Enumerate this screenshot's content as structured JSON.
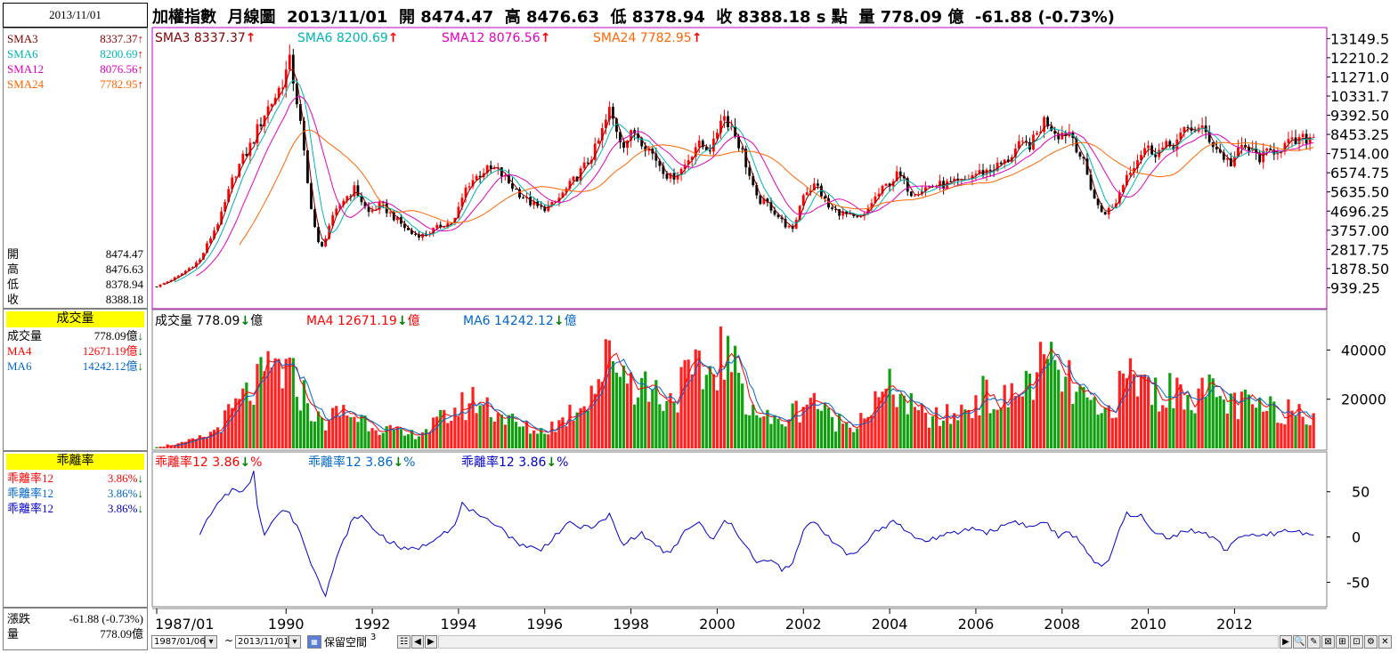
{
  "header": {
    "date": "2013/11/01",
    "title": "加權指數  月線圖  2013/11/01  開 8474.47  高 8476.63  低 8378.94  收 8388.18 s 點  量 778.09 億  -61.88 (-0.73%)"
  },
  "left_panel": {
    "sma": [
      {
        "name": "SMA3",
        "value": "8337.37",
        "arrow": "↑",
        "color": "#800000"
      },
      {
        "name": "SMA6",
        "value": "8200.69",
        "arrow": "↑",
        "color": "#00b4b4"
      },
      {
        "name": "SMA12",
        "value": "8076.56",
        "arrow": "↑",
        "color": "#e000c0"
      },
      {
        "name": "SMA24",
        "value": "7782.95",
        "arrow": "↑",
        "color": "#ff6600"
      }
    ],
    "ohlc": [
      {
        "name": "開",
        "value": "8474.47"
      },
      {
        "name": "高",
        "value": "8476.63"
      },
      {
        "name": "低",
        "value": "8378.94"
      },
      {
        "name": "收",
        "value": "8388.18"
      }
    ],
    "volume_title": "成交量",
    "volume": [
      {
        "name": "成交量",
        "value": "778.09億",
        "arrow": "↓",
        "color": "#000000"
      },
      {
        "name": "MA4",
        "value": "12671.19億",
        "arrow": "↓",
        "color": "#ff0000"
      },
      {
        "name": "MA6",
        "value": "14242.12億",
        "arrow": "↓",
        "color": "#0066cc"
      }
    ],
    "bias_title": "乖離率",
    "bias": [
      {
        "name": "乖離率12",
        "value": "3.86%",
        "arrow": "↓",
        "color": "#ff0000"
      },
      {
        "name": "乖離率12",
        "value": "3.86%",
        "arrow": "↓",
        "color": "#0066cc"
      },
      {
        "name": "乖離率12",
        "value": "3.86%",
        "arrow": "↓",
        "color": "#0000cc"
      }
    ],
    "footer": [
      {
        "name": "漲跌",
        "value": "-61.88 (-0.73%)"
      },
      {
        "name": "量",
        "value": "778.09億"
      }
    ]
  },
  "legends": {
    "price": [
      {
        "label": "SMA3",
        "value": "8337.37",
        "arrow": "↑",
        "color": "#800000"
      },
      {
        "label": "SMA6",
        "value": "8200.69",
        "arrow": "↑",
        "color": "#00b4b4"
      },
      {
        "label": "SMA12",
        "value": "8076.56",
        "arrow": "↑",
        "color": "#e000c0"
      },
      {
        "label": "SMA24",
        "value": "7782.95",
        "arrow": "↑",
        "color": "#ff6600"
      }
    ],
    "volume": [
      {
        "label": "成交量",
        "value": "778.09",
        "arrow": "↓",
        "unit": "億",
        "color": "#000000"
      },
      {
        "label": "MA4",
        "value": "12671.19",
        "arrow": "↓",
        "unit": "億",
        "color": "#ff0000"
      },
      {
        "label": "MA6",
        "value": "14242.12",
        "arrow": "↓",
        "unit": "億",
        "color": "#0066cc"
      }
    ],
    "bias": [
      {
        "label": "乖離率12",
        "value": "3.86",
        "arrow": "↓",
        "unit": "%",
        "color": "#ff0000"
      },
      {
        "label": "乖離率12",
        "value": "3.86",
        "arrow": "↓",
        "unit": "%",
        "color": "#0066cc"
      },
      {
        "label": "乖離率12",
        "value": "3.86",
        "arrow": "↓",
        "unit": "%",
        "color": "#0000cc"
      }
    ]
  },
  "toolbar": {
    "start_date": "1987/01/06",
    "tilde": "~",
    "end_date": "2013/11/01",
    "reserve_label": "保留空間",
    "reserve_value": "3"
  },
  "chart_data": [
    {
      "type": "candlestick",
      "panel": "price",
      "ylim": [
        0,
        13600
      ],
      "y_ticks": [
        "13149.5",
        "12210.2",
        "11271.0",
        "10331.7",
        "9392.50",
        "8453.25",
        "7514.00",
        "6574.75",
        "5635.50",
        "4696.25",
        "3757.00",
        "2817.75",
        "1878.50",
        "939.25"
      ],
      "y_tick_values": [
        13149.5,
        12210.2,
        11271.0,
        10331.7,
        9392.5,
        8453.25,
        7514.0,
        6574.75,
        5635.5,
        4696.25,
        3757.0,
        2817.75,
        1878.5,
        939.25
      ],
      "x_ticks": [
        "1987/01",
        "1990",
        "1992",
        "1994",
        "1996",
        "1998",
        "2000",
        "2002",
        "2004",
        "2006",
        "2008",
        "2010",
        "2012"
      ],
      "x_tick_years": [
        1987.0,
        1990,
        1992,
        1994,
        1996,
        1998,
        2000,
        2002,
        2004,
        2006,
        2008,
        2010,
        2012
      ],
      "x_range": [
        1987.0,
        2013.85
      ],
      "key_points": [
        [
          1987.0,
          1000
        ],
        [
          1987.5,
          1500
        ],
        [
          1988.0,
          2300
        ],
        [
          1988.5,
          4500
        ],
        [
          1988.8,
          6500
        ],
        [
          1989.2,
          8000
        ],
        [
          1989.5,
          9500
        ],
        [
          1989.8,
          10500
        ],
        [
          1990.1,
          12000
        ],
        [
          1990.3,
          9500
        ],
        [
          1990.5,
          6000
        ],
        [
          1990.7,
          3500
        ],
        [
          1990.8,
          2700
        ],
        [
          1991.0,
          4000
        ],
        [
          1991.3,
          5200
        ],
        [
          1991.6,
          5800
        ],
        [
          1991.9,
          4600
        ],
        [
          1992.2,
          5000
        ],
        [
          1992.6,
          4200
        ],
        [
          1992.9,
          3600
        ],
        [
          1993.2,
          3500
        ],
        [
          1993.6,
          4000
        ],
        [
          1993.9,
          4200
        ],
        [
          1994.2,
          6000
        ],
        [
          1994.6,
          6700
        ],
        [
          1994.9,
          6700
        ],
        [
          1995.2,
          6000
        ],
        [
          1995.6,
          5200
        ],
        [
          1995.9,
          4800
        ],
        [
          1996.2,
          5000
        ],
        [
          1996.6,
          6000
        ],
        [
          1996.9,
          6800
        ],
        [
          1997.2,
          7800
        ],
        [
          1997.5,
          9600
        ],
        [
          1997.8,
          8000
        ],
        [
          1998.1,
          8600
        ],
        [
          1998.5,
          7500
        ],
        [
          1998.9,
          6300
        ],
        [
          1999.2,
          6800
        ],
        [
          1999.5,
          7900
        ],
        [
          1999.9,
          7800
        ],
        [
          2000.1,
          9500
        ],
        [
          2000.3,
          9000
        ],
        [
          2000.6,
          7500
        ],
        [
          2000.9,
          5300
        ],
        [
          2001.2,
          5000
        ],
        [
          2001.5,
          4200
        ],
        [
          2001.75,
          3700
        ],
        [
          2002.0,
          5600
        ],
        [
          2002.3,
          6000
        ],
        [
          2002.6,
          4800
        ],
        [
          2002.9,
          4600
        ],
        [
          2003.2,
          4300
        ],
        [
          2003.4,
          4400
        ],
        [
          2003.6,
          5200
        ],
        [
          2003.9,
          5900
        ],
        [
          2004.2,
          6500
        ],
        [
          2004.5,
          5600
        ],
        [
          2004.9,
          5900
        ],
        [
          2005.3,
          6000
        ],
        [
          2005.7,
          6100
        ],
        [
          2005.95,
          6500
        ],
        [
          2006.3,
          6700
        ],
        [
          2006.7,
          7100
        ],
        [
          2006.95,
          7800
        ],
        [
          2007.3,
          8000
        ],
        [
          2007.6,
          9200
        ],
        [
          2007.9,
          8500
        ],
        [
          2008.2,
          8600
        ],
        [
          2008.5,
          7000
        ],
        [
          2008.8,
          5000
        ],
        [
          2008.95,
          4600
        ],
        [
          2009.2,
          4900
        ],
        [
          2009.5,
          6500
        ],
        [
          2009.9,
          7800
        ],
        [
          2010.2,
          7600
        ],
        [
          2010.6,
          8000
        ],
        [
          2010.95,
          8800
        ],
        [
          2011.3,
          8600
        ],
        [
          2011.6,
          7700
        ],
        [
          2011.9,
          7000
        ],
        [
          2012.2,
          7900
        ],
        [
          2012.6,
          7300
        ],
        [
          2012.9,
          7700
        ],
        [
          2013.3,
          8000
        ],
        [
          2013.6,
          8200
        ],
        [
          2013.85,
          8388
        ]
      ]
    },
    {
      "type": "bar",
      "panel": "volume",
      "ylim": [
        0,
        55000
      ],
      "y_ticks": [
        "40000",
        "20000"
      ],
      "y_tick_values": [
        40000,
        20000
      ],
      "key_points": [
        [
          1987.0,
          800
        ],
        [
          1987.6,
          2000
        ],
        [
          1988.2,
          5000
        ],
        [
          1988.6,
          12000
        ],
        [
          1989.0,
          20000
        ],
        [
          1989.5,
          28000
        ],
        [
          1989.8,
          33000
        ],
        [
          1990.3,
          25000
        ],
        [
          1990.8,
          10000
        ],
        [
          1991.3,
          15000
        ],
        [
          1991.8,
          12000
        ],
        [
          1992.3,
          8000
        ],
        [
          1992.8,
          5000
        ],
        [
          1993.3,
          8000
        ],
        [
          1993.9,
          15000
        ],
        [
          1994.4,
          20000
        ],
        [
          1994.9,
          15000
        ],
        [
          1995.4,
          9000
        ],
        [
          1995.9,
          7000
        ],
        [
          1996.4,
          11000
        ],
        [
          1996.9,
          20000
        ],
        [
          1997.3,
          30000
        ],
        [
          1997.6,
          40000
        ],
        [
          1997.9,
          30000
        ],
        [
          1998.4,
          25000
        ],
        [
          1998.9,
          20000
        ],
        [
          1999.3,
          28000
        ],
        [
          1999.8,
          30000
        ],
        [
          2000.1,
          40000
        ],
        [
          2000.6,
          25000
        ],
        [
          2000.9,
          15000
        ],
        [
          2001.4,
          10000
        ],
        [
          2001.8,
          15000
        ],
        [
          2002.2,
          22000
        ],
        [
          2002.6,
          12000
        ],
        [
          2003.1,
          10000
        ],
        [
          2003.6,
          17000
        ],
        [
          2004.1,
          25000
        ],
        [
          2004.6,
          14000
        ],
        [
          2005.1,
          12000
        ],
        [
          2005.6,
          14000
        ],
        [
          2006.1,
          22000
        ],
        [
          2006.6,
          18000
        ],
        [
          2007.1,
          25000
        ],
        [
          2007.6,
          34000
        ],
        [
          2007.9,
          30000
        ],
        [
          2008.4,
          22000
        ],
        [
          2008.9,
          12000
        ],
        [
          2009.3,
          22000
        ],
        [
          2009.6,
          30000
        ],
        [
          2009.9,
          26000
        ],
        [
          2010.4,
          22000
        ],
        [
          2010.9,
          24000
        ],
        [
          2011.4,
          22000
        ],
        [
          2011.9,
          18000
        ],
        [
          2012.4,
          17000
        ],
        [
          2012.9,
          15000
        ],
        [
          2013.4,
          17000
        ],
        [
          2013.85,
          15000
        ]
      ]
    },
    {
      "type": "line",
      "panel": "bias",
      "ylim": [
        -75,
        90
      ],
      "y_ticks": [
        "50",
        "0",
        "-50"
      ],
      "y_tick_values": [
        50,
        0,
        -50
      ],
      "x_range_start": 1988.0,
      "key_points": [
        [
          1988.0,
          5
        ],
        [
          1988.4,
          35
        ],
        [
          1988.8,
          55
        ],
        [
          1989.0,
          50
        ],
        [
          1989.2,
          60
        ],
        [
          1989.25,
          75
        ],
        [
          1989.35,
          28
        ],
        [
          1989.5,
          5
        ],
        [
          1989.8,
          25
        ],
        [
          1990.0,
          30
        ],
        [
          1990.3,
          10
        ],
        [
          1990.5,
          -20
        ],
        [
          1990.8,
          -50
        ],
        [
          1990.9,
          -65
        ],
        [
          1991.2,
          -20
        ],
        [
          1991.5,
          15
        ],
        [
          1991.7,
          25
        ],
        [
          1992.0,
          10
        ],
        [
          1992.4,
          -5
        ],
        [
          1992.8,
          -15
        ],
        [
          1993.2,
          -10
        ],
        [
          1993.6,
          5
        ],
        [
          1993.9,
          10
        ],
        [
          1994.1,
          38
        ],
        [
          1994.5,
          20
        ],
        [
          1994.9,
          15
        ],
        [
          1995.3,
          -5
        ],
        [
          1995.6,
          -10
        ],
        [
          1995.9,
          -15
        ],
        [
          1996.3,
          5
        ],
        [
          1996.6,
          15
        ],
        [
          1996.9,
          10
        ],
        [
          1997.3,
          15
        ],
        [
          1997.5,
          25
        ],
        [
          1997.8,
          -10
        ],
        [
          1998.2,
          5
        ],
        [
          1998.6,
          -10
        ],
        [
          1998.9,
          -20
        ],
        [
          1999.3,
          10
        ],
        [
          1999.6,
          15
        ],
        [
          1999.9,
          -5
        ],
        [
          2000.2,
          20
        ],
        [
          2000.4,
          8
        ],
        [
          2000.7,
          -10
        ],
        [
          2000.9,
          -30
        ],
        [
          2001.2,
          -25
        ],
        [
          2001.5,
          -35
        ],
        [
          2001.7,
          -35
        ],
        [
          2002.0,
          5
        ],
        [
          2002.2,
          20
        ],
        [
          2002.5,
          5
        ],
        [
          2002.8,
          -10
        ],
        [
          2003.0,
          -20
        ],
        [
          2003.3,
          -15
        ],
        [
          2003.6,
          5
        ],
        [
          2003.9,
          10
        ],
        [
          2004.1,
          20
        ],
        [
          2004.4,
          5
        ],
        [
          2004.8,
          -5
        ],
        [
          2005.1,
          0
        ],
        [
          2005.6,
          5
        ],
        [
          2005.9,
          10
        ],
        [
          2006.3,
          5
        ],
        [
          2006.6,
          12
        ],
        [
          2006.9,
          18
        ],
        [
          2007.3,
          10
        ],
        [
          2007.6,
          18
        ],
        [
          2007.9,
          0
        ],
        [
          2008.2,
          5
        ],
        [
          2008.5,
          -10
        ],
        [
          2008.8,
          -30
        ],
        [
          2008.95,
          -35
        ],
        [
          2009.1,
          -25
        ],
        [
          2009.3,
          5
        ],
        [
          2009.5,
          25
        ],
        [
          2009.8,
          25
        ],
        [
          2010.1,
          5
        ],
        [
          2010.5,
          0
        ],
        [
          2010.9,
          8
        ],
        [
          2011.2,
          5
        ],
        [
          2011.5,
          0
        ],
        [
          2011.8,
          -15
        ],
        [
          2012.1,
          2
        ],
        [
          2012.5,
          0
        ],
        [
          2012.8,
          3
        ],
        [
          2013.2,
          7
        ],
        [
          2013.6,
          5
        ],
        [
          2013.85,
          3.86
        ]
      ]
    }
  ]
}
